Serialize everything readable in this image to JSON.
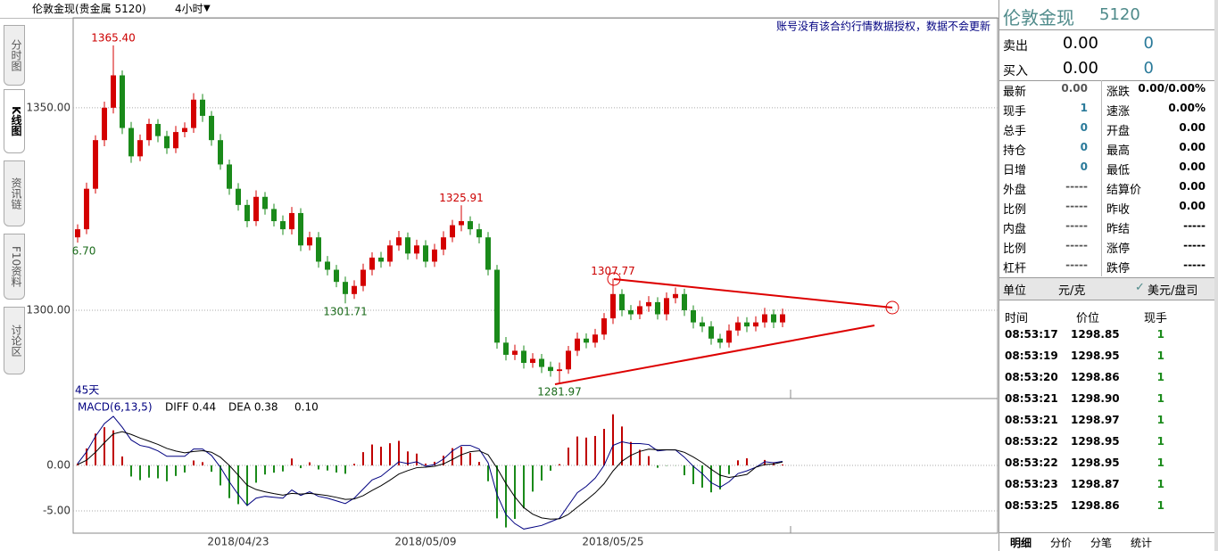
{
  "header": {
    "title": "伦敦金现(贵金属 5120)",
    "period": "4小时"
  },
  "side_tabs": [
    "分时图",
    "K线图",
    "资讯链",
    "F10资料",
    "讨论区"
  ],
  "chart_data": [
    {
      "type": "candlestick",
      "up_color": "#d40000",
      "down_color": "#1a8a1a",
      "grid": true,
      "notice": "账号没有该合约行情数据授权，数据不会更新",
      "range_label": "45天",
      "ylim": [
        1278.2,
        1372.2
      ],
      "yticks": [
        {
          "value": 1350,
          "label": "1350.00"
        },
        {
          "value": 1300,
          "label": "1300.00"
        }
      ],
      "categories": [
        null,
        null,
        null,
        null,
        null,
        null,
        null,
        null,
        null,
        null,
        null,
        null,
        null,
        null,
        null,
        null,
        null,
        null,
        "2018/04/23",
        null,
        null,
        null,
        null,
        null,
        null,
        null,
        null,
        null,
        null,
        null,
        null,
        null,
        null,
        null,
        null,
        null,
        null,
        null,
        null,
        "2018/05/09",
        null,
        null,
        null,
        null,
        null,
        null,
        null,
        null,
        null,
        null,
        null,
        null,
        null,
        null,
        null,
        null,
        null,
        null,
        null,
        null,
        "2018/05/25",
        null,
        null,
        null,
        null,
        null,
        null,
        null,
        null,
        null,
        null,
        null,
        null,
        null,
        null,
        null,
        null,
        null,
        null,
        null
      ],
      "ohlc": [
        [
          1318,
          1321.2,
          1316.7,
          1320
        ],
        [
          1320,
          1331.5,
          1318.8,
          1330
        ],
        [
          1330,
          1343.2,
          1328.8,
          1342
        ],
        [
          1342,
          1351.5,
          1340.5,
          1350
        ],
        [
          1350,
          1365.4,
          1348.6,
          1358
        ],
        [
          1358,
          1359.2,
          1343.5,
          1345
        ],
        [
          1345,
          1346.5,
          1336.4,
          1338
        ],
        [
          1338,
          1343.4,
          1336.8,
          1342
        ],
        [
          1342,
          1347.3,
          1340.6,
          1346
        ],
        [
          1346,
          1347.2,
          1341.5,
          1343
        ],
        [
          1343,
          1344.3,
          1338.6,
          1340
        ],
        [
          1340,
          1345.5,
          1338.8,
          1344
        ],
        [
          1344,
          1346.4,
          1342.7,
          1345
        ],
        [
          1345,
          1353.6,
          1343.8,
          1352
        ],
        [
          1352,
          1353.4,
          1346.5,
          1348
        ],
        [
          1348,
          1349.2,
          1340.6,
          1342
        ],
        [
          1342,
          1343.5,
          1334.7,
          1336
        ],
        [
          1336,
          1337.2,
          1328.5,
          1330
        ],
        [
          1330,
          1331.4,
          1324.6,
          1326
        ],
        [
          1326,
          1327.3,
          1320.5,
          1322
        ],
        [
          1322,
          1329.6,
          1320.8,
          1328
        ],
        [
          1328,
          1329.2,
          1323.6,
          1325
        ],
        [
          1325,
          1326.3,
          1320.7,
          1322
        ],
        [
          1322,
          1323.4,
          1318.6,
          1320
        ],
        [
          1320,
          1325.5,
          1318.7,
          1324
        ],
        [
          1324,
          1325.2,
          1314.6,
          1316
        ],
        [
          1316,
          1319.4,
          1314.8,
          1318
        ],
        [
          1318,
          1319.3,
          1310.5,
          1312
        ],
        [
          1312,
          1313.4,
          1308.6,
          1310
        ],
        [
          1310,
          1311.2,
          1305.7,
          1307
        ],
        [
          1307,
          1308.3,
          1301.71,
          1304
        ],
        [
          1304,
          1307.4,
          1302.8,
          1306
        ],
        [
          1306,
          1311.5,
          1304.7,
          1310
        ],
        [
          1310,
          1314.3,
          1308.6,
          1313
        ],
        [
          1313,
          1314.4,
          1310.5,
          1312
        ],
        [
          1312,
          1317.3,
          1310.8,
          1316
        ],
        [
          1316,
          1319.6,
          1314.7,
          1318
        ],
        [
          1318,
          1319.2,
          1312.5,
          1314
        ],
        [
          1314,
          1317.4,
          1312.6,
          1316
        ],
        [
          1316,
          1317.3,
          1310.6,
          1312
        ],
        [
          1312,
          1316.4,
          1310.7,
          1315
        ],
        [
          1315,
          1319.5,
          1313.6,
          1318
        ],
        [
          1318,
          1322.3,
          1316.8,
          1321
        ],
        [
          1321,
          1325.91,
          1319.5,
          1322
        ],
        [
          1322,
          1323.2,
          1318.6,
          1320
        ],
        [
          1320,
          1321.4,
          1316.5,
          1318
        ],
        [
          1318,
          1319.3,
          1308.6,
          1310
        ],
        [
          1310,
          1311.2,
          1290.5,
          1292
        ],
        [
          1292,
          1293.4,
          1287.6,
          1289
        ],
        [
          1289,
          1291.5,
          1287.7,
          1290
        ],
        [
          1290,
          1291.3,
          1285.6,
          1287
        ],
        [
          1287,
          1289.4,
          1285.8,
          1288
        ],
        [
          1288,
          1289.2,
          1284.5,
          1286
        ],
        [
          1286,
          1287.3,
          1283.6,
          1285
        ],
        [
          1285,
          1287.1,
          1281.97,
          1285.4
        ],
        [
          1285.4,
          1291.2,
          1284.3,
          1290
        ],
        [
          1290,
          1294.5,
          1288.7,
          1293
        ],
        [
          1293,
          1294.3,
          1290.6,
          1292
        ],
        [
          1292,
          1295.4,
          1290.8,
          1294
        ],
        [
          1294,
          1299.3,
          1292.7,
          1298
        ],
        [
          1298,
          1307.77,
          1296.6,
          1304
        ],
        [
          1304,
          1305.2,
          1298.5,
          1300
        ],
        [
          1300,
          1301.3,
          1297.6,
          1299
        ],
        [
          1299,
          1302.4,
          1297.8,
          1301
        ],
        [
          1301,
          1303.5,
          1299.6,
          1302
        ],
        [
          1302,
          1303.2,
          1297.7,
          1299
        ],
        [
          1299,
          1304.4,
          1297.5,
          1303
        ],
        [
          1303,
          1305.6,
          1301.7,
          1304
        ],
        [
          1304,
          1305.3,
          1298.6,
          1300
        ],
        [
          1300,
          1301.2,
          1295.5,
          1297
        ],
        [
          1297,
          1298.4,
          1294.6,
          1296
        ],
        [
          1296,
          1297.3,
          1291.5,
          1293
        ],
        [
          1293,
          1294.2,
          1290.6,
          1292
        ],
        [
          1292,
          1296.5,
          1290.8,
          1295
        ],
        [
          1295,
          1298.4,
          1293.7,
          1297
        ],
        [
          1297,
          1298.3,
          1294.6,
          1296
        ],
        [
          1296,
          1298.5,
          1294.8,
          1297
        ],
        [
          1297,
          1300.6,
          1295.7,
          1299
        ],
        [
          1299,
          1300.2,
          1295.6,
          1297
        ],
        [
          1297,
          1300.4,
          1295.8,
          1299
        ]
      ],
      "annotations": [
        {
          "label": "1365.40",
          "value": 1365.4
        },
        {
          "label": "6.70",
          "value": 1316.7
        },
        {
          "label": "1301.71",
          "value": 1301.71
        },
        {
          "label": "1325.91",
          "value": 1325.91
        },
        {
          "label": "1281.97",
          "value": 1281.97
        },
        {
          "label": "1307.77",
          "value": 1307.77
        }
      ]
    },
    {
      "type": "macd",
      "name": "MACD(6,13,5)",
      "diff_label": "DIFF 0.44",
      "dea_label": "DEA 0.38",
      "macd_label": "0.10",
      "diff_color": "#000080",
      "dea_color": "#000000",
      "up_color": "#c00000",
      "down_color": "#1a8a1a",
      "grid": true,
      "ylim": [
        -7.45,
        7.06
      ],
      "yticks": [
        {
          "value": 0,
          "label": "0.00"
        },
        {
          "value": -5,
          "label": "-5.00"
        }
      ],
      "diff": [
        0.2,
        1.5,
        3.2,
        4.6,
        5.4,
        4.2,
        2.8,
        2.2,
        2.0,
        1.6,
        1.0,
        1.0,
        1.0,
        1.8,
        1.8,
        1.1,
        -0.2,
        -1.8,
        -3.2,
        -4.4,
        -3.6,
        -3.4,
        -3.5,
        -3.6,
        -2.7,
        -3.3,
        -2.9,
        -3.4,
        -3.6,
        -3.9,
        -4.2,
        -3.6,
        -2.6,
        -1.6,
        -1.2,
        -0.4,
        0.4,
        0.2,
        0.4,
        -0.1,
        0.1,
        0.7,
        1.6,
        2.2,
        2.2,
        1.8,
        0.3,
        -3.2,
        -5.4,
        -6.4,
        -7.0,
        -6.8,
        -6.6,
        -6.2,
        -5.8,
        -4.4,
        -3.0,
        -2.3,
        -1.4,
        0.0,
        2.2,
        2.6,
        2.4,
        2.4,
        2.3,
        1.6,
        1.7,
        1.7,
        0.9,
        -0.1,
        -0.9,
        -1.9,
        -2.4,
        -1.8,
        -0.9,
        -0.6,
        -0.2,
        0.4,
        0.3,
        0.44
      ],
      "dea": [
        0.1,
        0.57,
        1.45,
        2.5,
        3.47,
        3.71,
        3.41,
        3.01,
        2.67,
        2.31,
        1.87,
        1.58,
        1.39,
        1.53,
        1.62,
        1.45,
        0.9,
        0,
        -1.07,
        -2.18,
        -2.65,
        -2.9,
        -3.1,
        -3.27,
        -3.08,
        -3.15,
        -3.07,
        -3.18,
        -3.32,
        -3.51,
        -3.74,
        -3.69,
        -3.33,
        -2.75,
        -2.23,
        -1.62,
        -0.95,
        -0.57,
        -0.25,
        -0.2,
        -0.1,
        0.17,
        0.65,
        1.17,
        1.51,
        1.61,
        1.17,
        -0.29,
        -1.99,
        -3.46,
        -4.64,
        -5.36,
        -5.77,
        -5.91,
        -5.87,
        -5.38,
        -4.59,
        -3.83,
        -3.02,
        -2.01,
        -0.61,
        0.46,
        1.11,
        1.54,
        1.79,
        1.73,
        1.72,
        1.71,
        1.44,
        0.93,
        0.32,
        -0.42,
        -1.08,
        -1.32,
        -1.18,
        -0.99,
        -0.2,
        0.1,
        0.15,
        0.38
      ],
      "macd": [
        0.2,
        1.86,
        3.5,
        4.2,
        3.86,
        0.98,
        -1.22,
        -1.62,
        -1.34,
        -1.42,
        -1.74,
        -1.16,
        -0.78,
        0.54,
        0.36,
        -0.7,
        -2.2,
        -3.6,
        -4.26,
        -4.44,
        -1.9,
        -1.0,
        -0.8,
        -0.66,
        0.76,
        -0.3,
        0.34,
        -0.44,
        -0.56,
        -0.78,
        -0.92,
        0.18,
        1.46,
        2.3,
        2.06,
        2.44,
        2.7,
        1.54,
        1.3,
        0.2,
        0.4,
        1.06,
        1.9,
        2.06,
        1.38,
        0.38,
        -1.74,
        -5.82,
        -6.82,
        -5.88,
        -4.72,
        -2.88,
        -1.66,
        -0.58,
        0.14,
        1.96,
        3.18,
        3.06,
        3.24,
        4.02,
        5.62,
        4.28,
        2.58,
        1.72,
        1.02,
        -0.26,
        -0.04,
        -0.02,
        -1.08,
        -2.06,
        -2.44,
        -2.96,
        -2.64,
        -0.96,
        0.56,
        0.78,
        0,
        0.6,
        0.3,
        0.1
      ]
    }
  ],
  "quote_panel": {
    "name": "伦敦金现",
    "code": "5120",
    "sell": {
      "label": "卖出",
      "price": "0.00",
      "volume": "0"
    },
    "buy": {
      "label": "买入",
      "price": "0.00",
      "volume": "0"
    },
    "rows": [
      [
        "最新",
        "0.00",
        "涨跌",
        "0.00/0.00%"
      ],
      [
        "现手",
        "1",
        "速涨",
        "0.00%"
      ],
      [
        "总手",
        "0",
        "开盘",
        "0.00"
      ],
      [
        "持仓",
        "0",
        "最高",
        "0.00"
      ],
      [
        "日增",
        "0",
        "最低",
        "0.00"
      ],
      [
        "外盘",
        "-----",
        "结算价",
        "0.00"
      ],
      [
        "比例",
        "-----",
        "昨收",
        "0.00"
      ],
      [
        "内盘",
        "-----",
        "昨结",
        "-----"
      ],
      [
        "比例",
        "-----",
        "涨停",
        "-----"
      ],
      [
        "杠杆",
        "-----",
        "跌停",
        "-----"
      ]
    ],
    "unit_label": "单位",
    "unit": "元/克",
    "alt_unit": "美元/盘司"
  },
  "trades": {
    "columns": [
      "时间",
      "价位",
      "现手"
    ],
    "rows": [
      [
        "08:53:17",
        "1298.85",
        "1"
      ],
      [
        "08:53:19",
        "1298.95",
        "1"
      ],
      [
        "08:53:20",
        "1298.86",
        "1"
      ],
      [
        "08:53:21",
        "1298.90",
        "1"
      ],
      [
        "08:53:21",
        "1298.97",
        "1"
      ],
      [
        "08:53:22",
        "1298.95",
        "1"
      ],
      [
        "08:53:22",
        "1298.95",
        "1"
      ],
      [
        "08:53:23",
        "1298.87",
        "1"
      ],
      [
        "08:53:25",
        "1298.86",
        "1"
      ]
    ]
  },
  "bottom_tabs": [
    "明细",
    "分价",
    "分笔",
    "统计"
  ]
}
